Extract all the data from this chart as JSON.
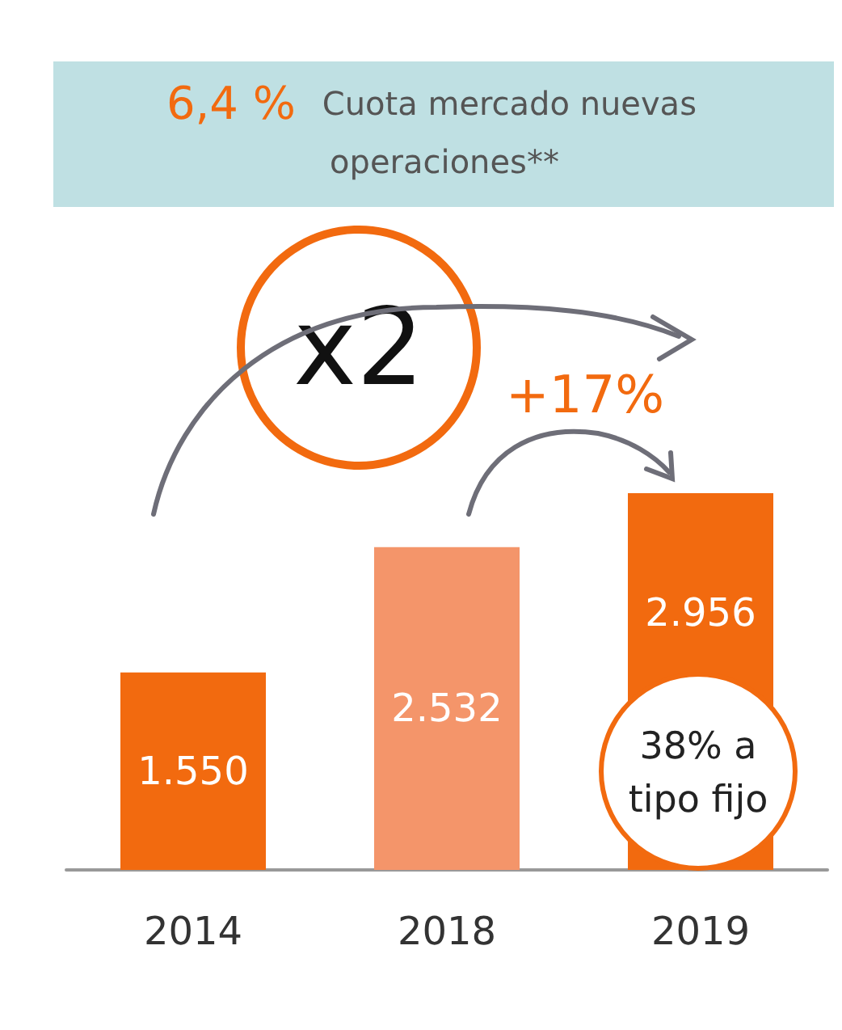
{
  "chart_data": {
    "type": "bar",
    "title": "6,4 %",
    "subtitle": "Cuota mercado nuevas operaciones**",
    "categories": [
      "2014",
      "2018",
      "2019"
    ],
    "values": [
      1550,
      2532,
      2956
    ],
    "colors": [
      "#f26a0f",
      "#f4956a",
      "#f26a0f"
    ],
    "value_labels": [
      "1.550",
      "2.532",
      "2.956"
    ],
    "annotations": [
      "x2",
      "+17%",
      "38% a tipo fijo"
    ]
  }
}
